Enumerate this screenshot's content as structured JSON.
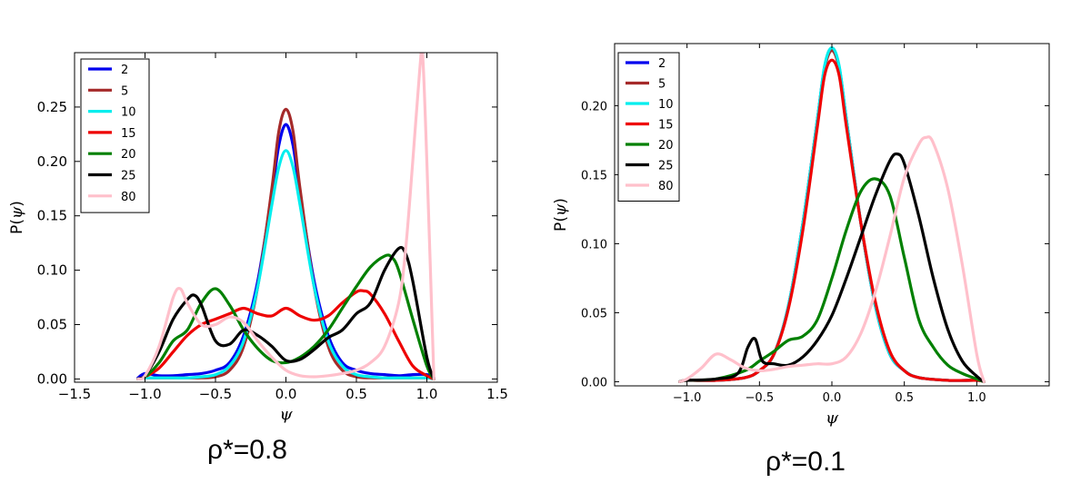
{
  "chart_data": [
    {
      "type": "line",
      "panel": "left",
      "title": "",
      "caption": "ρ*=0.8",
      "xlabel": "ψ",
      "ylabel_prefix": "P(",
      "ylabel_var": "ψ",
      "ylabel_suffix": ")",
      "xlim": [
        -1.5,
        1.5
      ],
      "ylim": [
        -0.003,
        0.3
      ],
      "xticks": [
        -1.5,
        -1.0,
        -0.5,
        0.0,
        0.5,
        1.0,
        1.5
      ],
      "xtick_labels": [
        "−1.5",
        "−1.0",
        "−0.5",
        "0.0",
        "0.5",
        "1.0",
        "1.5"
      ],
      "yticks": [
        0.0,
        0.05,
        0.1,
        0.15,
        0.2,
        0.25
      ],
      "ytick_labels": [
        "0.00",
        "0.05",
        "0.10",
        "0.15",
        "0.20",
        "0.25"
      ],
      "legend_position": "top-left",
      "series": [
        {
          "name": "2",
          "color": "#0000ee",
          "x": [
            -1.05,
            -1.0,
            -0.9,
            -0.8,
            -0.7,
            -0.6,
            -0.5,
            -0.4,
            -0.3,
            -0.2,
            -0.1,
            -0.05,
            0.0,
            0.05,
            0.1,
            0.2,
            0.3,
            0.4,
            0.5,
            0.6,
            0.7,
            0.8,
            0.9,
            1.0,
            1.05
          ],
          "y": [
            0.001,
            0.005,
            0.003,
            0.003,
            0.004,
            0.005,
            0.008,
            0.015,
            0.04,
            0.09,
            0.17,
            0.215,
            0.234,
            0.215,
            0.17,
            0.09,
            0.04,
            0.015,
            0.008,
            0.005,
            0.004,
            0.003,
            0.004,
            0.004,
            0.001
          ]
        },
        {
          "name": "5",
          "color": "#a52a2a",
          "x": [
            -1.05,
            -1.0,
            -0.9,
            -0.8,
            -0.7,
            -0.6,
            -0.5,
            -0.4,
            -0.3,
            -0.2,
            -0.1,
            -0.05,
            0.0,
            0.05,
            0.1,
            0.2,
            0.3,
            0.4,
            0.5,
            0.6,
            0.7,
            0.8,
            0.9,
            1.0,
            1.05
          ],
          "y": [
            0.0,
            0.001,
            0.001,
            0.001,
            0.001,
            0.001,
            0.002,
            0.008,
            0.03,
            0.085,
            0.175,
            0.228,
            0.248,
            0.228,
            0.175,
            0.085,
            0.03,
            0.008,
            0.002,
            0.001,
            0.001,
            0.001,
            0.001,
            0.001,
            0.0
          ]
        },
        {
          "name": "10",
          "color": "#00eeee",
          "x": [
            -1.05,
            -1.0,
            -0.9,
            -0.8,
            -0.7,
            -0.6,
            -0.5,
            -0.4,
            -0.3,
            -0.2,
            -0.1,
            -0.05,
            0.0,
            0.05,
            0.1,
            0.2,
            0.3,
            0.4,
            0.5,
            0.6,
            0.7,
            0.8,
            0.9,
            1.0,
            1.05
          ],
          "y": [
            0.0,
            0.001,
            0.001,
            0.001,
            0.001,
            0.002,
            0.004,
            0.012,
            0.035,
            0.085,
            0.16,
            0.195,
            0.21,
            0.195,
            0.16,
            0.085,
            0.035,
            0.012,
            0.004,
            0.002,
            0.001,
            0.001,
            0.001,
            0.001,
            0.0
          ]
        },
        {
          "name": "15",
          "color": "#ee0000",
          "x": [
            -1.05,
            -1.0,
            -0.9,
            -0.8,
            -0.7,
            -0.6,
            -0.5,
            -0.4,
            -0.3,
            -0.2,
            -0.1,
            0.0,
            0.1,
            0.2,
            0.3,
            0.4,
            0.5,
            0.55,
            0.6,
            0.7,
            0.8,
            0.9,
            1.0,
            1.05
          ],
          "y": [
            0.0,
            0.002,
            0.01,
            0.025,
            0.04,
            0.05,
            0.055,
            0.06,
            0.065,
            0.06,
            0.058,
            0.065,
            0.058,
            0.054,
            0.058,
            0.07,
            0.08,
            0.081,
            0.078,
            0.06,
            0.035,
            0.012,
            0.003,
            0.0
          ]
        },
        {
          "name": "20",
          "color": "#008000",
          "x": [
            -1.05,
            -1.0,
            -0.9,
            -0.8,
            -0.7,
            -0.6,
            -0.5,
            -0.4,
            -0.3,
            -0.2,
            -0.1,
            0.0,
            0.1,
            0.2,
            0.3,
            0.4,
            0.5,
            0.6,
            0.7,
            0.75,
            0.8,
            0.9,
            1.0,
            1.05
          ],
          "y": [
            0.0,
            0.002,
            0.015,
            0.035,
            0.045,
            0.07,
            0.083,
            0.068,
            0.045,
            0.028,
            0.017,
            0.015,
            0.02,
            0.03,
            0.045,
            0.065,
            0.085,
            0.103,
            0.113,
            0.112,
            0.1,
            0.055,
            0.012,
            0.0
          ]
        },
        {
          "name": "25",
          "color": "#000000",
          "x": [
            -1.05,
            -1.0,
            -0.9,
            -0.8,
            -0.7,
            -0.65,
            -0.6,
            -0.5,
            -0.4,
            -0.3,
            -0.2,
            -0.1,
            0.0,
            0.1,
            0.2,
            0.3,
            0.4,
            0.5,
            0.6,
            0.7,
            0.8,
            0.85,
            0.9,
            1.0,
            1.05
          ],
          "y": [
            0.0,
            0.003,
            0.025,
            0.055,
            0.073,
            0.077,
            0.068,
            0.035,
            0.032,
            0.045,
            0.04,
            0.03,
            0.017,
            0.018,
            0.027,
            0.038,
            0.045,
            0.06,
            0.07,
            0.1,
            0.12,
            0.115,
            0.09,
            0.02,
            0.0
          ]
        },
        {
          "name": "80",
          "color": "#ffc0cb",
          "x": [
            -1.05,
            -1.0,
            -0.9,
            -0.8,
            -0.75,
            -0.7,
            -0.6,
            -0.5,
            -0.4,
            -0.3,
            -0.2,
            -0.1,
            0.0,
            0.1,
            0.2,
            0.3,
            0.4,
            0.5,
            0.6,
            0.7,
            0.8,
            0.85,
            0.9,
            0.95,
            0.97,
            1.0,
            1.05
          ],
          "y": [
            0.0,
            0.003,
            0.03,
            0.075,
            0.083,
            0.07,
            0.05,
            0.05,
            0.057,
            0.052,
            0.035,
            0.02,
            0.008,
            0.003,
            0.002,
            0.003,
            0.005,
            0.008,
            0.015,
            0.03,
            0.07,
            0.12,
            0.2,
            0.285,
            0.298,
            0.2,
            0.0
          ]
        }
      ]
    },
    {
      "type": "line",
      "panel": "right",
      "title": "",
      "caption": "ρ*=0.1",
      "xlabel": "ψ",
      "ylabel_prefix": "P(",
      "ylabel_var": "ψ",
      "ylabel_suffix": ")",
      "xlim": [
        -1.5,
        1.5
      ],
      "ylim": [
        -0.003,
        0.245
      ],
      "xticks": [
        -1.0,
        -0.5,
        0.0,
        0.5,
        1.0
      ],
      "xtick_labels": [
        "−1.0",
        "−0.5",
        "0.0",
        "0.5",
        "1.0"
      ],
      "yticks": [
        0.0,
        0.05,
        0.1,
        0.15,
        0.2
      ],
      "ytick_labels": [
        "0.00",
        "0.05",
        "0.10",
        "0.15",
        "0.20"
      ],
      "legend_position": "top-left",
      "series": [
        {
          "name": "2",
          "color": "#0000ee",
          "x": [
            -1.05,
            -1.0,
            -0.8,
            -0.6,
            -0.5,
            -0.4,
            -0.3,
            -0.2,
            -0.1,
            -0.05,
            0.0,
            0.05,
            0.1,
            0.2,
            0.3,
            0.4,
            0.5,
            0.6,
            0.8,
            1.0,
            1.05
          ],
          "y": [
            0.0,
            0.001,
            0.001,
            0.003,
            0.008,
            0.02,
            0.055,
            0.115,
            0.19,
            0.228,
            0.241,
            0.228,
            0.19,
            0.115,
            0.055,
            0.02,
            0.008,
            0.003,
            0.001,
            0.001,
            0.0
          ]
        },
        {
          "name": "5",
          "color": "#a52a2a",
          "x": [
            -1.05,
            -1.0,
            -0.8,
            -0.6,
            -0.5,
            -0.4,
            -0.3,
            -0.2,
            -0.1,
            -0.05,
            0.0,
            0.05,
            0.1,
            0.2,
            0.3,
            0.4,
            0.5,
            0.6,
            0.8,
            1.0,
            1.05
          ],
          "y": [
            0.0,
            0.001,
            0.001,
            0.003,
            0.008,
            0.02,
            0.055,
            0.115,
            0.19,
            0.227,
            0.24,
            0.227,
            0.19,
            0.115,
            0.055,
            0.02,
            0.008,
            0.003,
            0.001,
            0.001,
            0.0
          ]
        },
        {
          "name": "10",
          "color": "#00eeee",
          "x": [
            -1.05,
            -1.0,
            -0.8,
            -0.6,
            -0.5,
            -0.4,
            -0.3,
            -0.2,
            -0.1,
            -0.05,
            0.0,
            0.05,
            0.1,
            0.2,
            0.3,
            0.4,
            0.5,
            0.6,
            0.8,
            1.0,
            1.05
          ],
          "y": [
            0.0,
            0.001,
            0.001,
            0.003,
            0.008,
            0.02,
            0.055,
            0.115,
            0.19,
            0.229,
            0.242,
            0.229,
            0.19,
            0.115,
            0.055,
            0.02,
            0.008,
            0.003,
            0.001,
            0.001,
            0.0
          ]
        },
        {
          "name": "15",
          "color": "#ee0000",
          "x": [
            -1.05,
            -1.0,
            -0.8,
            -0.6,
            -0.5,
            -0.4,
            -0.3,
            -0.2,
            -0.1,
            -0.05,
            0.0,
            0.05,
            0.1,
            0.2,
            0.3,
            0.4,
            0.5,
            0.6,
            0.8,
            1.0,
            1.05
          ],
          "y": [
            0.0,
            0.001,
            0.001,
            0.003,
            0.008,
            0.02,
            0.053,
            0.11,
            0.185,
            0.222,
            0.233,
            0.222,
            0.185,
            0.115,
            0.058,
            0.022,
            0.008,
            0.003,
            0.001,
            0.001,
            0.0
          ]
        },
        {
          "name": "20",
          "color": "#008000",
          "x": [
            -1.05,
            -1.0,
            -0.8,
            -0.6,
            -0.5,
            -0.4,
            -0.3,
            -0.2,
            -0.1,
            0.0,
            0.1,
            0.2,
            0.3,
            0.4,
            0.5,
            0.6,
            0.7,
            0.8,
            0.9,
            1.0,
            1.05
          ],
          "y": [
            0.0,
            0.001,
            0.002,
            0.008,
            0.015,
            0.022,
            0.03,
            0.033,
            0.045,
            0.075,
            0.11,
            0.138,
            0.147,
            0.135,
            0.09,
            0.045,
            0.025,
            0.012,
            0.006,
            0.002,
            0.0
          ]
        },
        {
          "name": "25",
          "color": "#000000",
          "x": [
            -1.05,
            -1.0,
            -0.8,
            -0.65,
            -0.58,
            -0.53,
            -0.48,
            -0.4,
            -0.3,
            -0.2,
            -0.1,
            0.0,
            0.1,
            0.2,
            0.3,
            0.4,
            0.45,
            0.5,
            0.6,
            0.7,
            0.8,
            0.9,
            1.0,
            1.05
          ],
          "y": [
            0.0,
            0.001,
            0.002,
            0.006,
            0.025,
            0.031,
            0.015,
            0.013,
            0.012,
            0.018,
            0.03,
            0.048,
            0.075,
            0.105,
            0.135,
            0.16,
            0.165,
            0.158,
            0.12,
            0.075,
            0.038,
            0.015,
            0.004,
            0.0
          ]
        },
        {
          "name": "80",
          "color": "#ffc0cb",
          "x": [
            -1.05,
            -1.0,
            -0.9,
            -0.8,
            -0.7,
            -0.6,
            -0.5,
            -0.4,
            -0.3,
            -0.2,
            -0.1,
            0.0,
            0.1,
            0.2,
            0.3,
            0.4,
            0.5,
            0.6,
            0.65,
            0.7,
            0.8,
            0.9,
            1.0,
            1.05
          ],
          "y": [
            0.0,
            0.002,
            0.01,
            0.02,
            0.016,
            0.01,
            0.008,
            0.009,
            0.011,
            0.012,
            0.013,
            0.013,
            0.018,
            0.035,
            0.065,
            0.105,
            0.148,
            0.172,
            0.177,
            0.173,
            0.14,
            0.085,
            0.02,
            0.0
          ]
        }
      ]
    }
  ]
}
